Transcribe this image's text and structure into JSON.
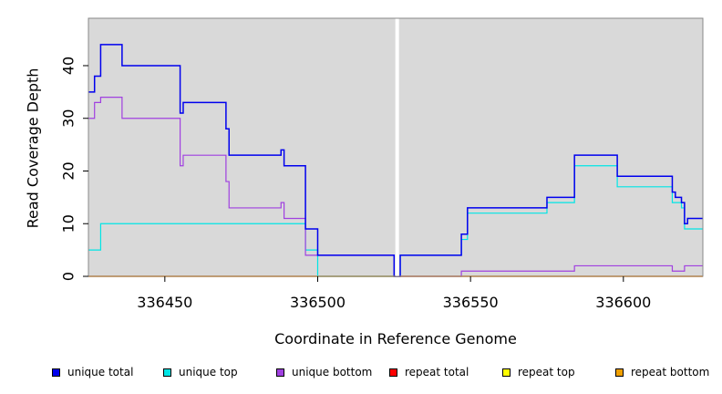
{
  "chart_data": {
    "type": "line",
    "step": true,
    "title": "",
    "xlabel": "Coordinate in Reference Genome",
    "ylabel": "Read Coverage Depth",
    "xlim": [
      336425,
      336626
    ],
    "ylim": [
      0,
      49
    ],
    "xticks": [
      336450,
      336500,
      336550,
      336600
    ],
    "yticks": [
      0,
      10,
      20,
      30,
      40
    ],
    "marker_line_x": 336526,
    "background": "#d9d9d9",
    "legend_position": "bottom",
    "series": [
      {
        "name": "unique total",
        "color": "#0000ee",
        "points": [
          [
            336425,
            35
          ],
          [
            336427,
            38
          ],
          [
            336429,
            44
          ],
          [
            336436,
            40
          ],
          [
            336455,
            31
          ],
          [
            336456,
            33
          ],
          [
            336470,
            28
          ],
          [
            336471,
            23
          ],
          [
            336488,
            24
          ],
          [
            336489,
            21
          ],
          [
            336496,
            9
          ],
          [
            336500,
            4
          ],
          [
            336525,
            0
          ],
          [
            336527,
            4
          ],
          [
            336547,
            8
          ],
          [
            336549,
            13
          ],
          [
            336575,
            15
          ],
          [
            336584,
            23
          ],
          [
            336598,
            19
          ],
          [
            336616,
            16
          ],
          [
            336617,
            15
          ],
          [
            336619,
            14
          ],
          [
            336620,
            10
          ],
          [
            336621,
            11
          ],
          [
            336626,
            11
          ]
        ]
      },
      {
        "name": "unique top",
        "color": "#00e5e5",
        "points": [
          [
            336425,
            5
          ],
          [
            336429,
            10
          ],
          [
            336496,
            5
          ],
          [
            336500,
            0
          ],
          [
            336527,
            4
          ],
          [
            336547,
            7
          ],
          [
            336549,
            12
          ],
          [
            336575,
            14
          ],
          [
            336584,
            21
          ],
          [
            336598,
            17
          ],
          [
            336616,
            14
          ],
          [
            336619,
            13
          ],
          [
            336620,
            9
          ],
          [
            336626,
            9
          ]
        ]
      },
      {
        "name": "unique bottom",
        "color": "#a040e0",
        "points": [
          [
            336425,
            30
          ],
          [
            336427,
            33
          ],
          [
            336429,
            34
          ],
          [
            336436,
            30
          ],
          [
            336455,
            21
          ],
          [
            336456,
            23
          ],
          [
            336470,
            18
          ],
          [
            336471,
            13
          ],
          [
            336488,
            14
          ],
          [
            336489,
            11
          ],
          [
            336496,
            4
          ],
          [
            336525,
            0
          ],
          [
            336527,
            0
          ],
          [
            336547,
            1
          ],
          [
            336584,
            2
          ],
          [
            336616,
            1
          ],
          [
            336620,
            2
          ],
          [
            336626,
            2
          ]
        ]
      },
      {
        "name": "repeat total",
        "color": "#ff0000",
        "points": [
          [
            336425,
            0
          ],
          [
            336626,
            0
          ]
        ]
      },
      {
        "name": "repeat top",
        "color": "#ffff00",
        "points": [
          [
            336425,
            0
          ],
          [
            336626,
            0
          ]
        ]
      },
      {
        "name": "repeat bottom",
        "color": "#f0a000",
        "points": [
          [
            336425,
            0
          ],
          [
            336626,
            0
          ]
        ]
      }
    ]
  },
  "xtick_labels": [
    "336450",
    "336500",
    "336550",
    "336600"
  ],
  "ytick_labels": [
    "0",
    "10",
    "20",
    "30",
    "40"
  ]
}
